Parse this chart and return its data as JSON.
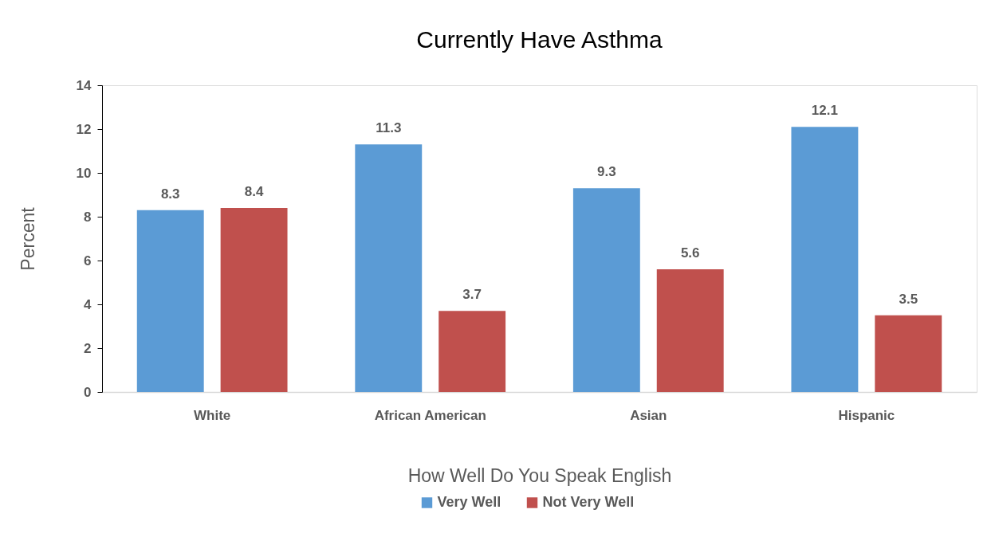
{
  "chart_data": {
    "type": "bar",
    "title": "Currently Have Asthma",
    "xlabel": "How Well Do You Speak English",
    "ylabel": "Percent",
    "categories": [
      "White",
      "African American",
      "Asian",
      "Hispanic"
    ],
    "series": [
      {
        "name": "Very Well",
        "color": "#5b9bd5",
        "values": [
          8.3,
          11.3,
          9.3,
          12.1
        ]
      },
      {
        "name": "Not Very Well",
        "color": "#c0504d",
        "values": [
          8.4,
          3.7,
          5.6,
          3.5
        ]
      }
    ],
    "ylim": [
      0,
      14
    ],
    "yticks": [
      0,
      2,
      4,
      6,
      8,
      10,
      12,
      14
    ],
    "grid": false,
    "legend": "bottom",
    "data_labels": true
  }
}
